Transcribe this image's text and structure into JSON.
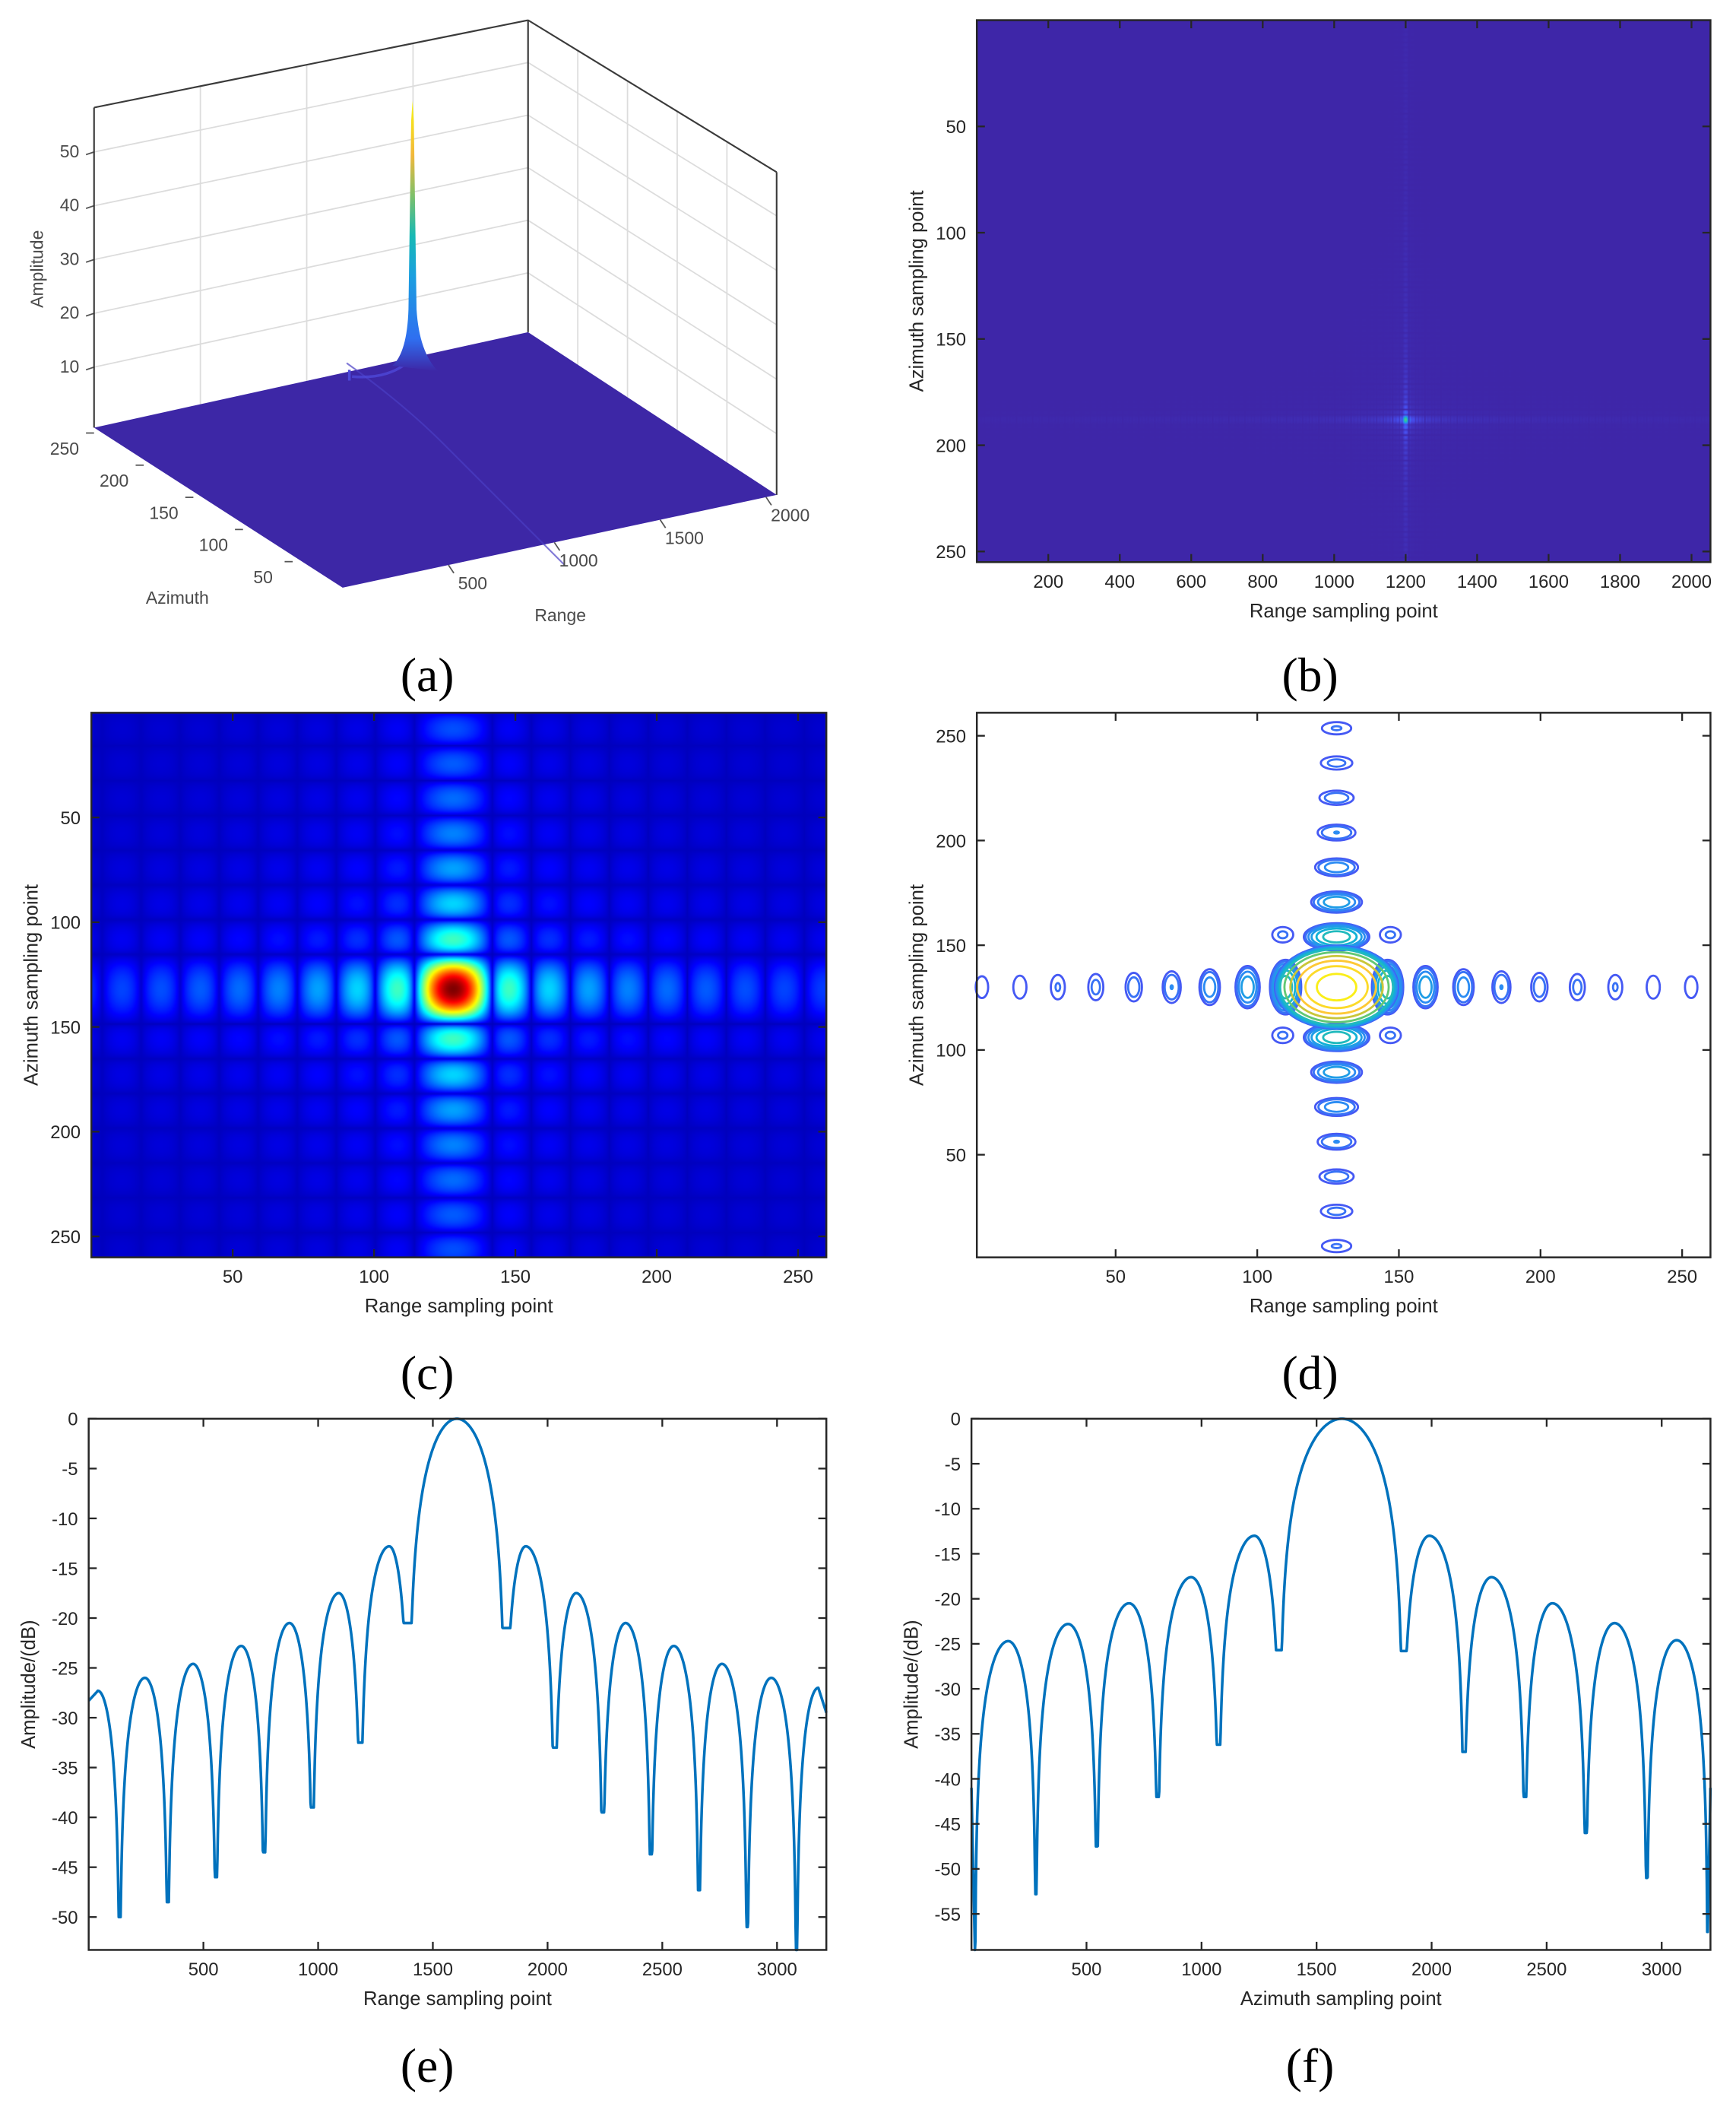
{
  "panel_labels": {
    "a": "(a)",
    "b": "(b)",
    "c": "(c)",
    "d": "(d)",
    "e": "(e)",
    "f": "(f)"
  },
  "colors": {
    "line": "#0072BD",
    "axes": "#262626",
    "heatmap_background_parula": "#3E26A8",
    "heatmap_background_jet": "#00008F"
  },
  "chart_data": [
    {
      "id": "a",
      "type": "surface",
      "colormap": "parula",
      "xlabel": "Range",
      "ylabel": "Azimuth",
      "zlabel": "Amplitude",
      "xticks": [
        "500",
        "1000",
        "1500",
        "2000"
      ],
      "yticks": [
        "250",
        "200",
        "150",
        "100",
        "50"
      ],
      "zticks": [
        "10",
        "20",
        "30",
        "40",
        "50"
      ],
      "xlim": [
        0,
        2050
      ],
      "ylim": [
        0,
        256
      ],
      "zlim": [
        0,
        58
      ],
      "grid": true,
      "peak": {
        "range": 1200,
        "azimuth": 188,
        "amplitude": 57
      }
    },
    {
      "id": "b",
      "type": "heatmap",
      "colormap": "parula",
      "xlabel": "Range sampling point",
      "ylabel": "Azimuth sampling point",
      "xticks": [
        "200",
        "400",
        "600",
        "800",
        "1000",
        "1200",
        "1400",
        "1600",
        "1800",
        "2000"
      ],
      "yticks": [
        "50",
        "100",
        "150",
        "200",
        "250"
      ],
      "xlim": [
        0,
        2053
      ],
      "ylim": [
        0,
        255
      ],
      "y_reversed": true,
      "peak": {
        "x": 1200,
        "y": 188
      }
    },
    {
      "id": "c",
      "type": "heatmap",
      "colormap": "jet",
      "xlabel": "Range sampling point",
      "ylabel": "Azimuth sampling point",
      "xticks": [
        "50",
        "100",
        "150",
        "200",
        "250"
      ],
      "yticks": [
        "50",
        "100",
        "150",
        "200",
        "250"
      ],
      "xlim": [
        0,
        260
      ],
      "ylim": [
        0,
        260
      ],
      "y_reversed": true,
      "peak": {
        "x": 128,
        "y": 132
      }
    },
    {
      "id": "d",
      "type": "contour",
      "colormap": "parula",
      "xlabel": "Range sampling point",
      "ylabel": "Azimuth sampling point",
      "xticks": [
        "50",
        "100",
        "150",
        "200",
        "250"
      ],
      "yticks": [
        "50",
        "100",
        "150",
        "200",
        "250"
      ],
      "xlim": [
        1,
        260
      ],
      "ylim": [
        1,
        261
      ],
      "y_reversed": false,
      "center": {
        "x": 128,
        "y": 130
      }
    },
    {
      "id": "e",
      "type": "line",
      "xlabel": "Range sampling point",
      "ylabel": "Amplitude/(dB)",
      "xticks": [
        "500",
        "1000",
        "1500",
        "2000",
        "2500",
        "3000"
      ],
      "yticks": [
        "0",
        "-5",
        "-10",
        "-15",
        "-20",
        "-25",
        "-30",
        "-35",
        "-40",
        "-45",
        "-50"
      ],
      "xlim": [
        0,
        3215
      ],
      "ylim": [
        -53.3,
        0
      ],
      "endpoints": [
        [
          0,
          -28.3
        ],
        [
          3215,
          -29.5
        ]
      ],
      "peaks": [
        [
          40,
          -27.3
        ],
        [
          245,
          -26
        ],
        [
          455,
          -24.6
        ],
        [
          665,
          -22.8
        ],
        [
          875,
          -20.5
        ],
        [
          1090,
          -17.5
        ],
        [
          1310,
          -12.8
        ],
        [
          1605,
          0
        ],
        [
          1905,
          -12.8
        ],
        [
          2125,
          -17.5
        ],
        [
          2340,
          -20.5
        ],
        [
          2550,
          -22.8
        ],
        [
          2760,
          -24.6
        ],
        [
          2975,
          -26
        ],
        [
          3180,
          -27
        ]
      ],
      "nulls": [
        [
          135,
          -50
        ],
        [
          345,
          -48.5
        ],
        [
          555,
          -46
        ],
        [
          765,
          -43.5
        ],
        [
          975,
          -39
        ],
        [
          1185,
          -32.5
        ],
        [
          1395,
          -20.5
        ],
        [
          1815,
          -21
        ],
        [
          2030,
          -33
        ],
        [
          2240,
          -39.5
        ],
        [
          2450,
          -43.7
        ],
        [
          2660,
          -47.3
        ],
        [
          2870,
          -51
        ],
        [
          3085,
          -54
        ]
      ]
    },
    {
      "id": "f",
      "type": "line",
      "xlabel": "Azimuth sampling point",
      "ylabel": "Amplitude/(dB)",
      "xticks": [
        "500",
        "1000",
        "1500",
        "2000",
        "2500",
        "3000"
      ],
      "yticks": [
        "0",
        "-5",
        "-10",
        "-15",
        "-20",
        "-25",
        "-30",
        "-35",
        "-40",
        "-45",
        "-50",
        "-55"
      ],
      "xlim": [
        0,
        3212
      ],
      "ylim": [
        -59,
        0
      ],
      "endpoints": [
        [
          0,
          -41
        ],
        [
          3212,
          -41
        ]
      ],
      "peaks": [
        [
          160,
          -24.7
        ],
        [
          420,
          -22.8
        ],
        [
          685,
          -20.5
        ],
        [
          955,
          -17.6
        ],
        [
          1230,
          -13
        ],
        [
          1610,
          0
        ],
        [
          1990,
          -13
        ],
        [
          2260,
          -17.6
        ],
        [
          2525,
          -20.5
        ],
        [
          2795,
          -22.7
        ],
        [
          3065,
          -24.6
        ]
      ],
      "nulls": [
        [
          15,
          -59
        ],
        [
          280,
          -52.8
        ],
        [
          545,
          -47.5
        ],
        [
          810,
          -42
        ],
        [
          1075,
          -36.2
        ],
        [
          1340,
          -25.7
        ],
        [
          1875,
          -25.8
        ],
        [
          2140,
          -37
        ],
        [
          2405,
          -42
        ],
        [
          2670,
          -46
        ],
        [
          2935,
          -51
        ],
        [
          3200,
          -57
        ]
      ]
    }
  ]
}
